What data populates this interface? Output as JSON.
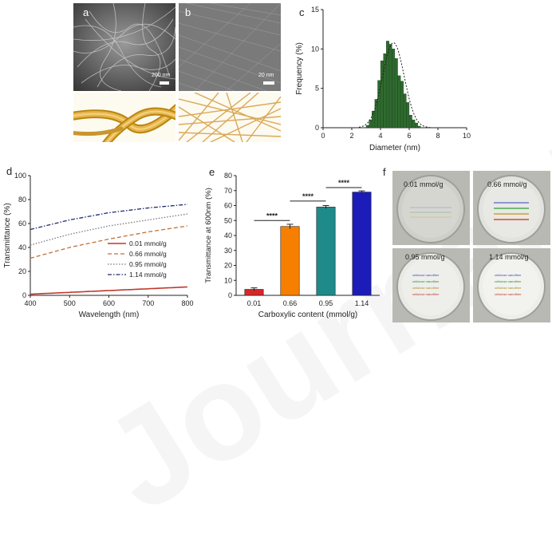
{
  "panels": {
    "a": {
      "letter": "a",
      "scale_label": "200 nm"
    },
    "b": {
      "letter": "b",
      "scale_label": "20 nm"
    },
    "c": {
      "letter": "c"
    },
    "d": {
      "letter": "d"
    },
    "e": {
      "letter": "e"
    },
    "f": {
      "letter": "f",
      "dishes": [
        "0.01 mmol/g",
        "0.66 mmol/g",
        "0.95 mmol/g",
        "1.14 mmol/g"
      ],
      "dish_text_line": "cellulose nanofiber"
    }
  },
  "watermark": "Journal Pre-proof",
  "colors": {
    "histogram": "#2e6b2e",
    "bar_001": "#d62828",
    "bar_066": "#f77f00",
    "bar_095": "#1f8a8a",
    "bar_114": "#1c1cb8",
    "line_001": "#c0392b",
    "line_066": "#c0703a",
    "line_095": "#7a7a7a",
    "line_114": "#1f2a6e"
  },
  "chart_data": [
    {
      "id": "c",
      "type": "bar",
      "xlabel": "Diameter (nm)",
      "ylabel": "Frequency (%)",
      "xlim": [
        0,
        10
      ],
      "ylim": [
        0,
        15
      ],
      "xticks": [
        0,
        2,
        4,
        6,
        8,
        10
      ],
      "yticks": [
        0,
        5,
        10,
        15
      ],
      "bins": [
        3.1,
        3.3,
        3.5,
        3.7,
        3.9,
        4.1,
        4.3,
        4.5,
        4.7,
        4.9,
        5.1,
        5.3,
        5.5,
        5.7,
        5.9,
        6.1,
        6.3,
        6.5,
        6.7
      ],
      "values": [
        0.3,
        1.0,
        2.1,
        3.6,
        6.0,
        8.5,
        9.4,
        11.0,
        10.6,
        10.0,
        8.8,
        6.6,
        5.9,
        4.3,
        3.2,
        1.6,
        1.0,
        0.6,
        0.2
      ],
      "fit": {
        "type": "gaussian",
        "mean": 4.9,
        "sigma": 0.75,
        "peak": 10.8
      }
    },
    {
      "id": "d",
      "type": "line",
      "xlabel": "Wavelength (nm)",
      "ylabel": "Transmittance (%)",
      "xlim": [
        400,
        800
      ],
      "ylim": [
        0,
        100
      ],
      "xticks": [
        400,
        500,
        600,
        700,
        800
      ],
      "yticks": [
        0,
        20,
        40,
        60,
        80,
        100
      ],
      "legend_position": "bottom-right",
      "series": [
        {
          "name": "0.01 mmol/g",
          "x": [
            400,
            500,
            600,
            700,
            800
          ],
          "y": [
            1,
            2.5,
            4,
            5.5,
            7
          ]
        },
        {
          "name": "0.66 mmol/g",
          "x": [
            400,
            500,
            600,
            700,
            800
          ],
          "y": [
            31,
            40,
            47,
            53,
            58
          ]
        },
        {
          "name": "0.95 mmol/g",
          "x": [
            400,
            500,
            600,
            700,
            800
          ],
          "y": [
            42,
            51,
            58,
            63,
            68
          ]
        },
        {
          "name": "1.14 mmol/g",
          "x": [
            400,
            500,
            600,
            700,
            800
          ],
          "y": [
            55,
            63,
            69,
            73,
            76
          ]
        }
      ]
    },
    {
      "id": "e",
      "type": "bar",
      "xlabel": "Carboxylic content (mmol/g)",
      "ylabel": "Transmittance at 600nm (%)",
      "ylim": [
        0,
        80
      ],
      "yticks": [
        0,
        10,
        20,
        30,
        40,
        50,
        60,
        70,
        80
      ],
      "categories": [
        "0.01",
        "0.66",
        "0.95",
        "1.14"
      ],
      "values": [
        4,
        46,
        59,
        69
      ],
      "errors": [
        1,
        1.5,
        1,
        0.8
      ],
      "significance": [
        {
          "from": 0,
          "to": 1,
          "label": "****",
          "y": 50
        },
        {
          "from": 1,
          "to": 2,
          "label": "****",
          "y": 63
        },
        {
          "from": 2,
          "to": 3,
          "label": "****",
          "y": 72
        }
      ]
    }
  ]
}
